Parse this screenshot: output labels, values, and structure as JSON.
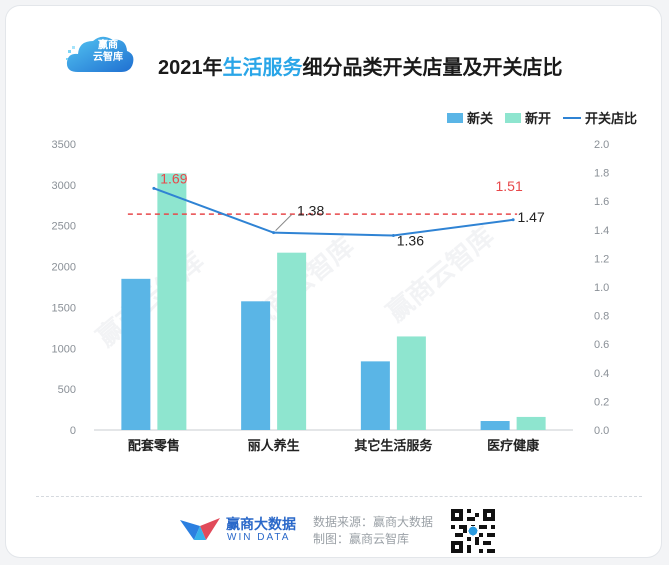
{
  "brand": {
    "logo_line1": "赢商",
    "logo_line2": "云智库",
    "wd_name": "赢商大数据",
    "wd_sub": "WIN DATA",
    "watermark": "赢商云智库"
  },
  "title": {
    "year": "2021年",
    "highlight": "生活服务",
    "rest": "细分品类开关店量及开关店比"
  },
  "legend": {
    "close": "新关",
    "open": "新开",
    "ratio": "开关店比"
  },
  "footer": {
    "source": "数据来源：赢商大数据",
    "maker": "制图：赢商云智库"
  },
  "colors": {
    "close": "#5ab5e6",
    "open": "#8ee5cf",
    "ratio": "#2f83d4",
    "ref": "#e8484a",
    "title_highlight": "#2aa6e8"
  },
  "chart_data": {
    "type": "bar",
    "categories": [
      "配套零售",
      "丽人养生",
      "其它生活服务",
      "医疗健康"
    ],
    "series": [
      {
        "name": "新关",
        "type": "bar",
        "axis": "left",
        "values": [
          1850,
          1575,
          840,
          110
        ]
      },
      {
        "name": "新开",
        "type": "bar",
        "axis": "left",
        "values": [
          3140,
          2170,
          1145,
          160
        ]
      },
      {
        "name": "开关店比",
        "type": "line",
        "axis": "right",
        "values": [
          1.69,
          1.38,
          1.36,
          1.47
        ]
      }
    ],
    "reference_line": {
      "value": 1.51,
      "axis": "right",
      "style": "dashed"
    },
    "line_labels": [
      "1.69",
      "1.38",
      "1.36",
      "1.47"
    ],
    "reference_label": "1.51",
    "y_left": {
      "min": 0,
      "max": 3500,
      "ticks": [
        0,
        500,
        1000,
        1500,
        2000,
        2500,
        3000,
        3500
      ]
    },
    "y_right": {
      "min": 0,
      "max": 2.0,
      "ticks": [
        "0.0",
        "0.2",
        "0.4",
        "0.6",
        "0.8",
        "1.0",
        "1.2",
        "1.4",
        "1.6",
        "1.8",
        "2.0"
      ]
    },
    "legend_position": "top-right",
    "grid": false
  }
}
